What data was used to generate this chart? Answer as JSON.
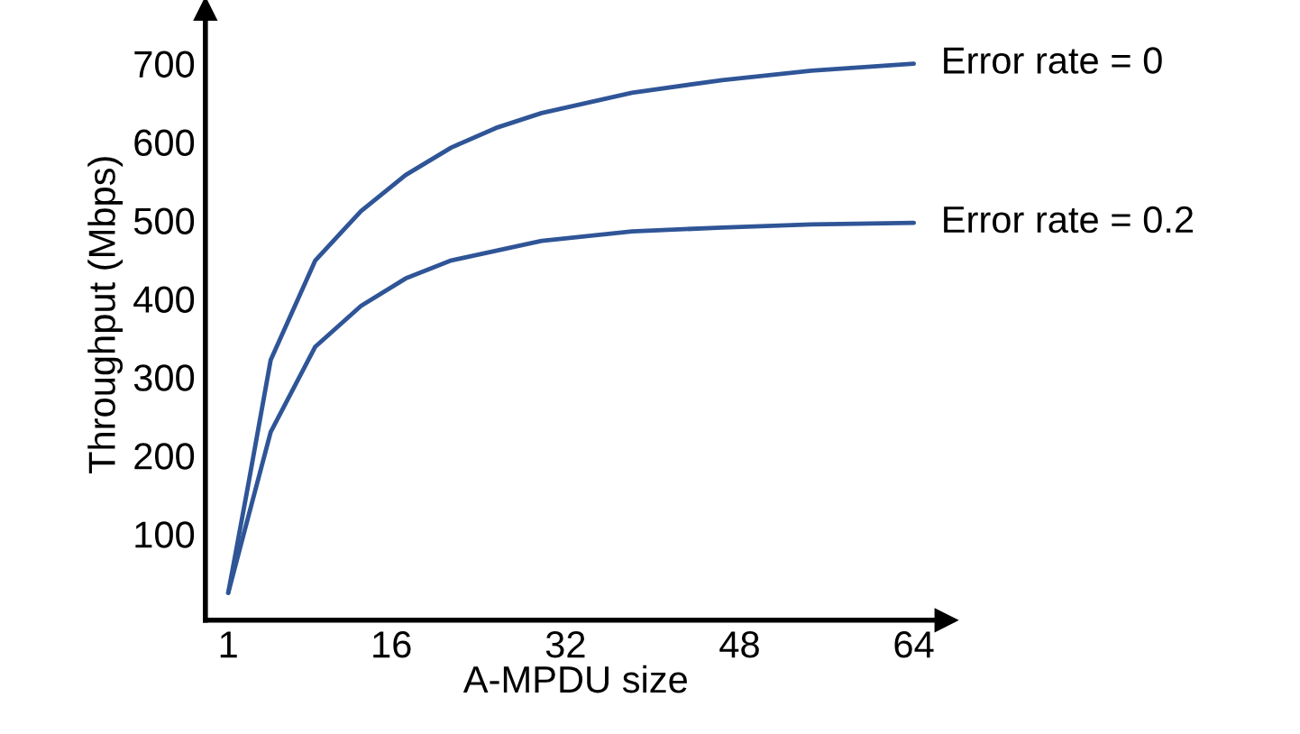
{
  "chart_data": {
    "type": "line",
    "xlabel": "A-MPDU size",
    "ylabel": "Throughput (Mbps)",
    "xlim": [
      -1.1,
      67
    ],
    "ylim": [
      -10,
      770
    ],
    "xticks": [
      1,
      16,
      32,
      48,
      64
    ],
    "yticks": [
      100,
      200,
      300,
      400,
      500,
      600,
      700
    ],
    "grid": false,
    "legend": false,
    "marker": "none",
    "line_style": "solid",
    "series": [
      {
        "name": "Error rate = 0",
        "color": "#2f5597",
        "x": [
          1,
          2.8,
          4.9,
          9.0,
          13.2,
          17.3,
          21.5,
          25.6,
          29.8,
          38.1,
          46.4,
          54.6,
          64
        ],
        "values": [
          25,
          160,
          322,
          449,
          512,
          558,
          593,
          618,
          637,
          663,
          679,
          691,
          700
        ]
      },
      {
        "name": "Error rate = 0.2",
        "color": "#2f5597",
        "x": [
          1,
          2.8,
          4.9,
          9.0,
          13.2,
          17.3,
          21.5,
          29.8,
          38.1,
          46.4,
          54.6,
          64
        ],
        "values": [
          25,
          120,
          230,
          339,
          391,
          426,
          449,
          474,
          486,
          491,
          495,
          497
        ]
      }
    ]
  }
}
